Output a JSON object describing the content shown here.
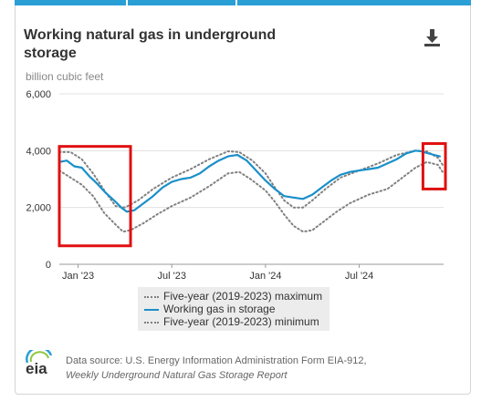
{
  "header": {
    "title": "Working natural gas in underground storage",
    "download_icon": "download-icon"
  },
  "colors": {
    "tab_accent": "#2a9fd6",
    "storage_line": "#1a8fc9",
    "range_lines": "#808080",
    "highlight_box": "#e01010"
  },
  "chart_data": {
    "type": "line",
    "ylabel": "billion cubic feet",
    "ylim": [
      0,
      6000
    ],
    "y_ticks": [
      "0",
      "2,000",
      "4,000",
      "6,000"
    ],
    "x_ticks": [
      "Jan '23",
      "Jul '23",
      "Jan '24",
      "Jul '24"
    ],
    "xlim": [
      2022.9,
      2024.95
    ],
    "grid": "horizontal",
    "legend_position": "bottom",
    "series": [
      {
        "name": "Five-year (2019-2023) maximum",
        "style": "dotted",
        "x": [
          2022.9,
          2022.96,
          2023.02,
          2023.08,
          2023.14,
          2023.2,
          2023.25,
          2023.32,
          2023.4,
          2023.5,
          2023.6,
          2023.7,
          2023.8,
          2023.86,
          2023.93,
          2024.0,
          2024.05,
          2024.1,
          2024.15,
          2024.2,
          2024.25,
          2024.32,
          2024.4,
          2024.5,
          2024.6,
          2024.7,
          2024.8,
          2024.86,
          2024.92,
          2024.95
        ],
        "y": [
          3950,
          3950,
          3700,
          3200,
          2600,
          2050,
          2000,
          2250,
          2650,
          3050,
          3350,
          3700,
          3980,
          3950,
          3650,
          3200,
          2700,
          2250,
          2000,
          2000,
          2250,
          2650,
          3050,
          3300,
          3550,
          3850,
          4000,
          3980,
          3750,
          3450
        ]
      },
      {
        "name": "Working gas in storage",
        "style": "solid",
        "x": [
          2022.9,
          2022.94,
          2022.98,
          2023.02,
          2023.06,
          2023.1,
          2023.15,
          2023.2,
          2023.23,
          2023.26,
          2023.3,
          2023.35,
          2023.4,
          2023.45,
          2023.5,
          2023.55,
          2023.6,
          2023.65,
          2023.7,
          2023.75,
          2023.8,
          2023.85,
          2023.9,
          2023.95,
          2024.0,
          2024.05,
          2024.1,
          2024.15,
          2024.2,
          2024.25,
          2024.3,
          2024.35,
          2024.4,
          2024.45,
          2024.5,
          2024.55,
          2024.6,
          2024.65,
          2024.7,
          2024.75,
          2024.8,
          2024.83,
          2024.86,
          2024.9,
          2024.93
        ],
        "y": [
          3600,
          3650,
          3450,
          3400,
          3100,
          2850,
          2500,
          2200,
          2000,
          1850,
          1900,
          2150,
          2400,
          2700,
          2900,
          3000,
          3050,
          3200,
          3450,
          3650,
          3800,
          3850,
          3650,
          3300,
          2950,
          2650,
          2400,
          2350,
          2300,
          2450,
          2700,
          2950,
          3150,
          3250,
          3300,
          3350,
          3400,
          3550,
          3700,
          3900,
          4000,
          3980,
          3920,
          3850,
          3800
        ]
      },
      {
        "name": "Five-year (2019-2023) minimum",
        "style": "dotted",
        "x": [
          2022.9,
          2022.96,
          2023.02,
          2023.08,
          2023.14,
          2023.2,
          2023.24,
          2023.28,
          2023.35,
          2023.42,
          2023.5,
          2023.6,
          2023.7,
          2023.8,
          2023.86,
          2023.92,
          2024.0,
          2024.05,
          2024.1,
          2024.15,
          2024.2,
          2024.25,
          2024.3,
          2024.38,
          2024.45,
          2024.55,
          2024.65,
          2024.72,
          2024.8,
          2024.86,
          2024.92,
          2024.95
        ],
        "y": [
          3300,
          3050,
          2800,
          2400,
          1800,
          1400,
          1150,
          1200,
          1450,
          1750,
          2050,
          2350,
          2750,
          3200,
          3250,
          3000,
          2600,
          2200,
          1750,
          1350,
          1150,
          1200,
          1450,
          1850,
          2150,
          2450,
          2650,
          3000,
          3400,
          3600,
          3500,
          3200
        ]
      }
    ]
  },
  "annotations": [
    {
      "name": "highlight-box-left",
      "x0": 2022.9,
      "x1": 2023.28,
      "y0": 650,
      "y1": 4150
    },
    {
      "name": "highlight-box-right",
      "x0": 2024.84,
      "x1": 2024.96,
      "y0": 2650,
      "y1": 4250
    }
  ],
  "footer": {
    "logo_text": "eia",
    "source_line1": "Data source: U.S. Energy Information Administration Form EIA-912,",
    "source_line2": "Weekly Underground Natural Gas Storage Report"
  }
}
